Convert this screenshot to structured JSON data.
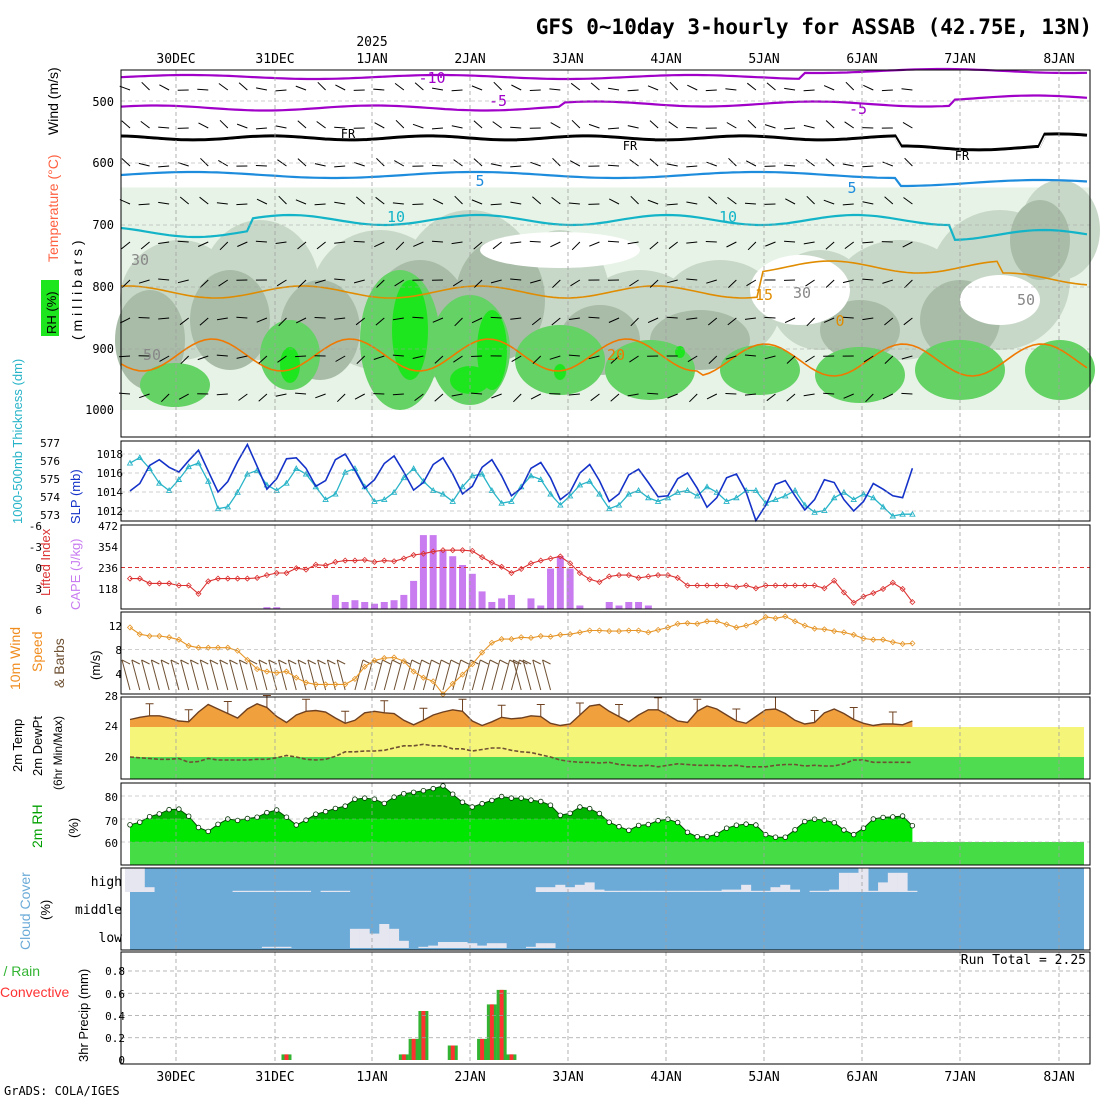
{
  "title": "GFS 0~10day 3-hourly for ASSAB (42.75E, 13N)",
  "year_label": "2025",
  "credit": "GrADS: COLA/IGES",
  "run_total": "Run Total = 2.25",
  "dates": [
    "30DEC",
    "31DEC",
    "1JAN",
    "2JAN",
    "3JAN",
    "4JAN",
    "5JAN",
    "6JAN",
    "7JAN",
    "8JAN"
  ],
  "colors": {
    "frame": "#000000",
    "grid": "#a0a0a0",
    "rh_light": "#e6f3e6",
    "rh_mid": "#c8d8c8",
    "rh_dark": "#a8bca8",
    "rh_green": "#64d264",
    "rh_bright": "#1ee61e",
    "temp_purple": "#a000c8",
    "temp_black": "#000000",
    "temp_blue": "#1e8cdc",
    "temp_cyan": "#14b4c8",
    "temp_orange": "#e08c00",
    "temp_orange2": "#f07800",
    "slp_line": "#1432c8",
    "thick_line": "#28b4c8",
    "li_line": "#dc3232",
    "cape_bar": "#c87cf0",
    "wind_line": "#e69628",
    "barb": "#6e5032",
    "temp_fill": "#f0a03c",
    "dew_fill_yellow": "#f5f57a",
    "dew_fill_green": "#50dc50",
    "dew_line": "#6e5032",
    "rh2m_dark": "#00b400",
    "rh2m_mid": "#00e600",
    "rh2m_light": "#46dc46",
    "cloud_bg": "#6cabd8",
    "cloud_fill": "#e6e6f0",
    "precip_green": "#32b432",
    "precip_red": "#ff3232"
  },
  "panels": {
    "upper": {
      "y_label_1": "Wind (m/s)",
      "y_label_2": "Temperature (°C)",
      "y_label_3": "RH (%)",
      "y_units": "( m i l l i b a r s )",
      "levels": [
        "500",
        "600",
        "700",
        "800",
        "900",
        "1000"
      ],
      "contour_labels": [
        "-10",
        "-5",
        "-5",
        "FR",
        "FR",
        "FR",
        "5",
        "5",
        "10",
        "10",
        "15",
        "20",
        "30",
        "30",
        "50",
        "50",
        "0"
      ]
    },
    "slp": {
      "label_left": "1000-500mb Thickness (dm)",
      "label_right": "SLP (mb)",
      "thick_ticks": [
        "577",
        "576",
        "575",
        "574",
        "573"
      ],
      "slp_ticks": [
        "1018",
        "1016",
        "1014",
        "1012"
      ]
    },
    "cape": {
      "label_left": "Lifted Index",
      "label_right": "CAPE (J/kg)",
      "li_ticks": [
        "-6",
        "-3",
        "0",
        "3",
        "6"
      ],
      "cape_ticks": [
        "472",
        "354",
        "236",
        "118"
      ]
    },
    "wind": {
      "label_1": "10m Wind",
      "label_2": "Speed",
      "label_3": "& Barbs",
      "label_units": "(m/s)",
      "ticks": [
        "12",
        "8",
        "4"
      ]
    },
    "temp2m": {
      "label_1": "2m Temp",
      "label_2": "2m DewPt",
      "label_3": "(6hr Min/Max)",
      "ticks": [
        "28",
        "24",
        "20"
      ]
    },
    "rh2m": {
      "label": "2m RH",
      "units": "(%)",
      "ticks": [
        "80",
        "70",
        "60"
      ]
    },
    "cloud": {
      "label": "Cloud Cover",
      "units": "(%)",
      "rows": [
        "high",
        "middle",
        "low"
      ]
    },
    "precip": {
      "label_1": "Total / Rain",
      "label_2": "Convective",
      "y_label": "3hr Precip (mm)",
      "ticks": [
        "0.8",
        "0.6",
        "0.4",
        "0.2",
        "0"
      ]
    }
  },
  "chart_data": {
    "type": "line",
    "x_unit": "3-hour steps from 29 Dec 12Z",
    "steps": 81,
    "slp_mb": [
      1014.1,
      1014.9,
      1016.8,
      1017.4,
      1016.6,
      1016.1,
      1017.3,
      1018.4,
      1016.2,
      1014.0,
      1015.1,
      1017.2,
      1019.0,
      1016.7,
      1014.3,
      1015.4,
      1017.5,
      1017.6,
      1016.5,
      1014.6,
      1015.2,
      1017.4,
      1018.0,
      1016.3,
      1014.4,
      1015.3,
      1017.0,
      1017.8,
      1016.1,
      1014.2,
      1015.0,
      1016.9,
      1017.6,
      1015.9,
      1013.8,
      1014.6,
      1016.6,
      1017.4,
      1015.7,
      1013.6,
      1014.4,
      1016.5,
      1017.1,
      1015.5,
      1013.2,
      1014.0,
      1016.0,
      1016.9,
      1015.2,
      1013.0,
      1013.8,
      1015.8,
      1016.4,
      1015.0,
      1013.5,
      1013.6,
      1015.4,
      1016.0,
      1014.4,
      1012.4,
      1013.4,
      1015.5,
      1015.9,
      1014.0,
      1011.0,
      1012.6,
      1014.8,
      1015.2,
      1013.6,
      1012.1,
      1013.2,
      1015.3,
      1015.0,
      1013.2,
      1012.0,
      1013.0,
      1014.9,
      1014.3,
      1013.6,
      1013.4,
      1016.5
    ],
    "thickness_dm": [
      575.9,
      576.2,
      575.6,
      574.8,
      574.4,
      575.0,
      575.7,
      575.9,
      574.9,
      573.4,
      573.5,
      574.3,
      575.3,
      575.5,
      574.7,
      574.4,
      574.8,
      575.6,
      575.3,
      574.6,
      573.9,
      574.2,
      575.4,
      575.6,
      574.6,
      573.8,
      573.9,
      574.3,
      575.1,
      575.6,
      574.9,
      574.4,
      574.2,
      573.8,
      574.6,
      575.2,
      575.3,
      574.4,
      573.7,
      573.8,
      574.6,
      575.2,
      575.0,
      574.2,
      573.6,
      574.1,
      574.7,
      574.9,
      574.2,
      573.4,
      573.6,
      574.2,
      574.4,
      574.0,
      573.8,
      574.0,
      574.3,
      574.4,
      574.1,
      574.6,
      574.3,
      573.8,
      574.0,
      574.4,
      574.4,
      573.7,
      573.9,
      574.1,
      574.4,
      573.6,
      573.2,
      573.3,
      574.0,
      574.3,
      573.9,
      574.2,
      574.0,
      573.5,
      573.0,
      573.1,
      573.1
    ],
    "lifted_index": [
      1.6,
      1.6,
      2.3,
      2.3,
      2.3,
      2.6,
      2.6,
      3.8,
      2.0,
      1.6,
      1.6,
      1.6,
      1.6,
      1.5,
      1.1,
      0.8,
      0.8,
      0.1,
      0.3,
      -0.4,
      -0.3,
      -0.8,
      -1.0,
      -1.0,
      -1.1,
      -0.8,
      -1.0,
      -0.9,
      -1.3,
      -1.8,
      -2.0,
      -2.3,
      -2.5,
      -2.5,
      -2.5,
      -2.4,
      -1.5,
      -0.7,
      -0.1,
      0.8,
      0.2,
      -0.6,
      -1.0,
      -1.3,
      -1.6,
      -0.6,
      0.8,
      1.7,
      2.1,
      1.3,
      1.1,
      1.1,
      1.5,
      1.3,
      1.1,
      1.1,
      1.5,
      2.6,
      2.6,
      2.6,
      2.6,
      2.6,
      2.8,
      2.6,
      3.0,
      2.6,
      2.6,
      2.6,
      2.6,
      2.6,
      2.6,
      3.0,
      1.9,
      3.6,
      5.1,
      4.2,
      3.7,
      3.1,
      2.2,
      3.1,
      5.0
    ],
    "cape_jkg": [
      0,
      0,
      0,
      0,
      0,
      0,
      0,
      0,
      0,
      0,
      0,
      0,
      0,
      0,
      10,
      10,
      0,
      0,
      0,
      0,
      0,
      80,
      40,
      50,
      40,
      30,
      40,
      50,
      80,
      160,
      420,
      420,
      330,
      300,
      250,
      200,
      100,
      40,
      60,
      80,
      0,
      60,
      20,
      230,
      300,
      230,
      20,
      0,
      0,
      40,
      20,
      40,
      40,
      20,
      0,
      0,
      0,
      0,
      0,
      0,
      0,
      0,
      0,
      0,
      0,
      0,
      0,
      0,
      0,
      0,
      0,
      0,
      0,
      0,
      0,
      0,
      0,
      0,
      0,
      0,
      0
    ],
    "wind_speed_ms": [
      11.6,
      10.5,
      10.2,
      10.2,
      10.0,
      9.6,
      8.6,
      8.3,
      8.3,
      8.3,
      8.3,
      7.8,
      6.3,
      4.8,
      4.4,
      4.2,
      4.4,
      3.4,
      2.6,
      2.3,
      2.3,
      2.3,
      2.3,
      3.2,
      5.2,
      6.2,
      6.6,
      6.7,
      6.1,
      4.4,
      3.4,
      2.8,
      0.7,
      2.4,
      3.9,
      5.6,
      7.5,
      9.1,
      9.7,
      9.7,
      10.0,
      9.9,
      10.2,
      10.1,
      10.4,
      10.5,
      10.8,
      11.1,
      11.1,
      11.0,
      11.0,
      11.1,
      11.1,
      10.8,
      11.2,
      11.6,
      12.2,
      12.3,
      12.2,
      12.6,
      12.6,
      12.1,
      11.6,
      11.9,
      12.4,
      13.3,
      13.1,
      13.4,
      12.6,
      11.9,
      11.4,
      11.3,
      11.0,
      10.8,
      10.4,
      9.8,
      9.6,
      9.6,
      9.2,
      8.9,
      9.0
    ],
    "temp2m_c": [
      25.0,
      25.3,
      25.5,
      25.5,
      25.2,
      24.8,
      24.7,
      26.0,
      27.0,
      26.4,
      25.8,
      25.2,
      26.4,
      27.1,
      26.6,
      25.4,
      24.6,
      25.6,
      26.1,
      26.2,
      26.0,
      25.2,
      24.5,
      24.9,
      25.9,
      26.1,
      25.9,
      25.8,
      24.9,
      24.3,
      24.9,
      25.6,
      26.0,
      26.3,
      26.1,
      24.8,
      24.2,
      24.7,
      25.3,
      25.1,
      25.2,
      25.5,
      25.4,
      24.5,
      24.2,
      24.4,
      25.6,
      26.8,
      27.0,
      26.1,
      25.4,
      24.7,
      25.6,
      26.3,
      26.3,
      25.6,
      24.8,
      24.6,
      26.1,
      26.8,
      26.4,
      25.6,
      24.8,
      24.5,
      25.4,
      26.3,
      26.4,
      25.8,
      24.9,
      24.4,
      24.6,
      25.9,
      26.4,
      25.8,
      25.0,
      24.5,
      24.2,
      24.4,
      24.4,
      24.3,
      24.8
    ],
    "dewpt2m_c": [
      20.0,
      19.9,
      19.8,
      19.7,
      19.7,
      19.8,
      19.3,
      19.4,
      19.8,
      19.6,
      19.6,
      19.6,
      19.6,
      19.7,
      19.7,
      19.9,
      20.2,
      20.0,
      19.7,
      19.6,
      19.7,
      20.1,
      20.7,
      20.7,
      20.8,
      20.8,
      20.9,
      21.2,
      21.5,
      21.5,
      21.7,
      21.5,
      21.5,
      21.1,
      21.1,
      20.8,
      21.0,
      21.2,
      21.2,
      20.9,
      20.7,
      20.6,
      20.3,
      20.0,
      19.6,
      19.4,
      19.3,
      19.3,
      19.2,
      19.3,
      19.0,
      18.9,
      18.8,
      18.9,
      18.7,
      18.9,
      19.1,
      19.0,
      18.9,
      18.9,
      18.9,
      18.8,
      18.9,
      18.7,
      18.7,
      18.7,
      18.9,
      19.0,
      19.0,
      18.8,
      18.9,
      18.8,
      18.8,
      19.1,
      19.6,
      19.6,
      19.3,
      19.3,
      19.3,
      19.3,
      19.3
    ],
    "rh2m_pct": [
      67.5,
      68.6,
      71.0,
      72.2,
      74.1,
      74.3,
      71.2,
      66.3,
      64.6,
      67.7,
      70.0,
      69.4,
      70.2,
      70.8,
      72.8,
      73.9,
      70.8,
      67.4,
      69.5,
      72.1,
      73.2,
      74.6,
      75.6,
      78.6,
      79.1,
      78.6,
      76.8,
      79.5,
      81.0,
      81.6,
      82.3,
      83.2,
      84.4,
      80.8,
      77.3,
      75.2,
      76.7,
      78.1,
      79.8,
      79.1,
      79.1,
      78.2,
      77.6,
      76.0,
      71.6,
      72.5,
      75.2,
      74.5,
      72.4,
      68.6,
      66.7,
      65.1,
      67.2,
      67.6,
      69.3,
      69.9,
      68.5,
      64.2,
      62.3,
      62.3,
      63.4,
      66.0,
      67.3,
      67.8,
      67.4,
      63.2,
      62.1,
      62.1,
      65.3,
      68.9,
      69.9,
      69.5,
      68.4,
      65.2,
      63.2,
      66.0,
      70.0,
      70.7,
      70.9,
      71.3,
      67.1
    ],
    "cloud_high_pct": [
      100,
      100,
      20,
      0,
      0,
      0,
      0,
      0,
      0,
      0,
      0,
      5,
      5,
      5,
      5,
      5,
      5,
      5,
      5,
      0,
      5,
      5,
      5,
      0,
      0,
      0,
      0,
      0,
      0,
      0,
      0,
      0,
      0,
      0,
      0,
      0,
      0,
      0,
      0,
      0,
      0,
      0,
      20,
      20,
      30,
      20,
      30,
      40,
      10,
      5,
      5,
      5,
      5,
      5,
      5,
      5,
      5,
      5,
      5,
      5,
      5,
      10,
      10,
      30,
      5,
      5,
      20,
      30,
      10,
      0,
      5,
      5,
      10,
      80,
      80,
      100,
      5,
      40,
      80,
      80,
      5
    ],
    "cloud_low_pct": [
      0,
      0,
      0,
      0,
      0,
      0,
      0,
      0,
      0,
      0,
      0,
      0,
      0,
      0,
      5,
      5,
      5,
      0,
      0,
      0,
      0,
      0,
      0,
      80,
      80,
      60,
      100,
      80,
      30,
      0,
      5,
      10,
      25,
      25,
      25,
      20,
      10,
      20,
      20,
      0,
      0,
      5,
      20,
      20,
      0,
      0,
      0,
      0,
      0,
      0,
      0,
      0,
      0,
      0,
      0,
      0,
      0,
      0,
      0,
      0,
      0,
      0,
      0,
      0,
      0,
      0,
      0,
      0,
      0,
      0,
      0,
      0,
      0,
      0,
      0,
      0,
      0,
      0,
      0,
      0,
      0
    ],
    "precip_mm": [
      0,
      0,
      0,
      0,
      0,
      0,
      0,
      0,
      0,
      0,
      0,
      0,
      0,
      0,
      0,
      0,
      0.05,
      0,
      0,
      0,
      0,
      0,
      0,
      0,
      0,
      0,
      0,
      0,
      0.05,
      0.19,
      0.44,
      0,
      0,
      0.13,
      0,
      0,
      0.19,
      0.5,
      0.63,
      0.05,
      0,
      0,
      0,
      0,
      0,
      0,
      0,
      0,
      0,
      0,
      0,
      0,
      0,
      0,
      0,
      0,
      0,
      0,
      0,
      0,
      0,
      0,
      0,
      0,
      0,
      0,
      0,
      0,
      0,
      0,
      0,
      0,
      0,
      0,
      0,
      0,
      0,
      0,
      0,
      0,
      0
    ]
  }
}
